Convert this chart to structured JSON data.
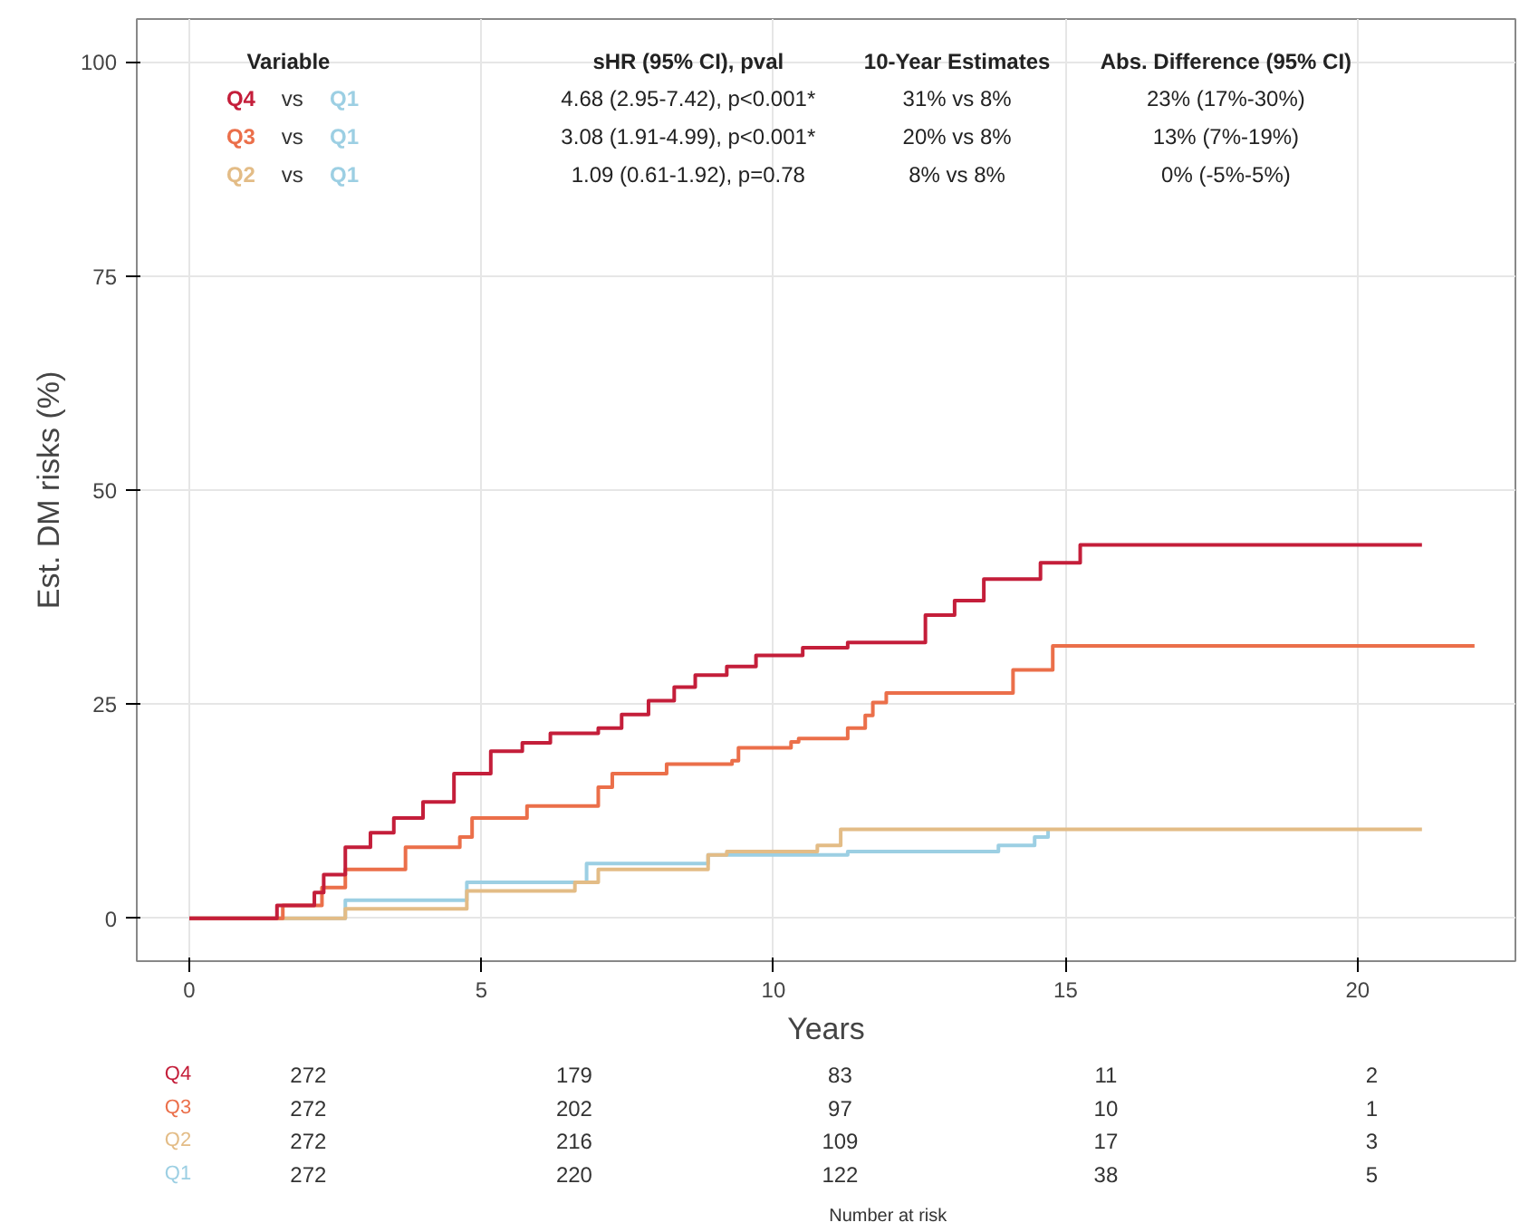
{
  "chart_data": {
    "type": "step",
    "xlabel": "Years",
    "ylabel": "Est. DM risks (%)",
    "xlim": [
      -0.9,
      22.7
    ],
    "ylim": [
      -5,
      105
    ],
    "xticks": [
      0,
      5,
      10,
      15,
      20
    ],
    "yticks": [
      0,
      25,
      50,
      75,
      100
    ],
    "grid": true,
    "line_style": "solid",
    "series": [
      {
        "name": "Q4",
        "color": "#c41e3a",
        "x": [
          0,
          1.02,
          1.5,
          2.14,
          2.3,
          2.67,
          3.1,
          3.5,
          4.0,
          4.53,
          5.16,
          5.7,
          6.18,
          7.0,
          7.4,
          7.86,
          8.3,
          8.66,
          9.2,
          9.7,
          10.5,
          11.27,
          12.6,
          13.1,
          13.6,
          14.57,
          15.25,
          21.1
        ],
        "values": [
          0,
          0,
          1.5,
          3.0,
          5.1,
          8.3,
          10.0,
          11.7,
          13.6,
          16.9,
          19.5,
          20.5,
          21.6,
          22.2,
          23.8,
          25.4,
          27.0,
          28.4,
          29.4,
          30.7,
          31.6,
          32.2,
          35.4,
          37.1,
          39.6,
          41.5,
          43.6,
          43.6
        ]
      },
      {
        "name": "Q3",
        "color": "#eb6f4a",
        "x": [
          0,
          1.02,
          1.6,
          2.27,
          2.67,
          3.7,
          4.63,
          4.84,
          5.78,
          7.0,
          7.24,
          8.17,
          9.29,
          9.4,
          10.3,
          10.43,
          11.27,
          11.57,
          11.7,
          11.93,
          14.1,
          14.78,
          22.0
        ],
        "values": [
          0,
          0,
          1.5,
          3.6,
          5.7,
          8.3,
          9.5,
          11.7,
          13.1,
          15.3,
          16.9,
          18.0,
          18.4,
          19.9,
          20.6,
          21.0,
          22.2,
          23.7,
          25.2,
          26.3,
          29.0,
          31.8,
          31.8
        ]
      },
      {
        "name": "Q2",
        "color": "#e3bc86",
        "x": [
          0,
          1.0,
          2.67,
          4.75,
          6.6,
          7.0,
          8.88,
          9.2,
          10.75,
          11.15,
          21.1
        ],
        "values": [
          0,
          0,
          1.1,
          3.2,
          4.2,
          5.7,
          7.4,
          7.8,
          8.5,
          10.4,
          10.4
        ]
      },
      {
        "name": "Q1",
        "color": "#9ccfe3",
        "x": [
          0,
          1.0,
          2.67,
          4.75,
          6.8,
          8.88,
          11.27,
          13.85,
          14.47,
          14.7
        ],
        "values": [
          0,
          0,
          2.1,
          4.2,
          6.4,
          7.4,
          7.8,
          8.5,
          9.5,
          10.4
        ]
      }
    ],
    "annotations": [
      "Variable",
      "sHR (95% CI), pval",
      "10-Year Estimates",
      "Abs. Difference (95% CI)",
      "vs",
      "4.68 (2.95-7.42), p<0.001*",
      "31% vs 8%",
      "23% (17%-30%)",
      "3.08 (1.91-4.99), p<0.001*",
      "20% vs 8%",
      "13% (7%-19%)",
      "1.09 (0.61-1.92), p=0.78",
      "8% vs 8%",
      "0% (-5%-5%)",
      "Number at risk",
      "272",
      "179",
      "83",
      "11",
      "2",
      "272",
      "202",
      "97",
      "10",
      "1",
      "272",
      "216",
      "109",
      "17",
      "3",
      "272",
      "220",
      "122",
      "38",
      "5"
    ]
  }
}
